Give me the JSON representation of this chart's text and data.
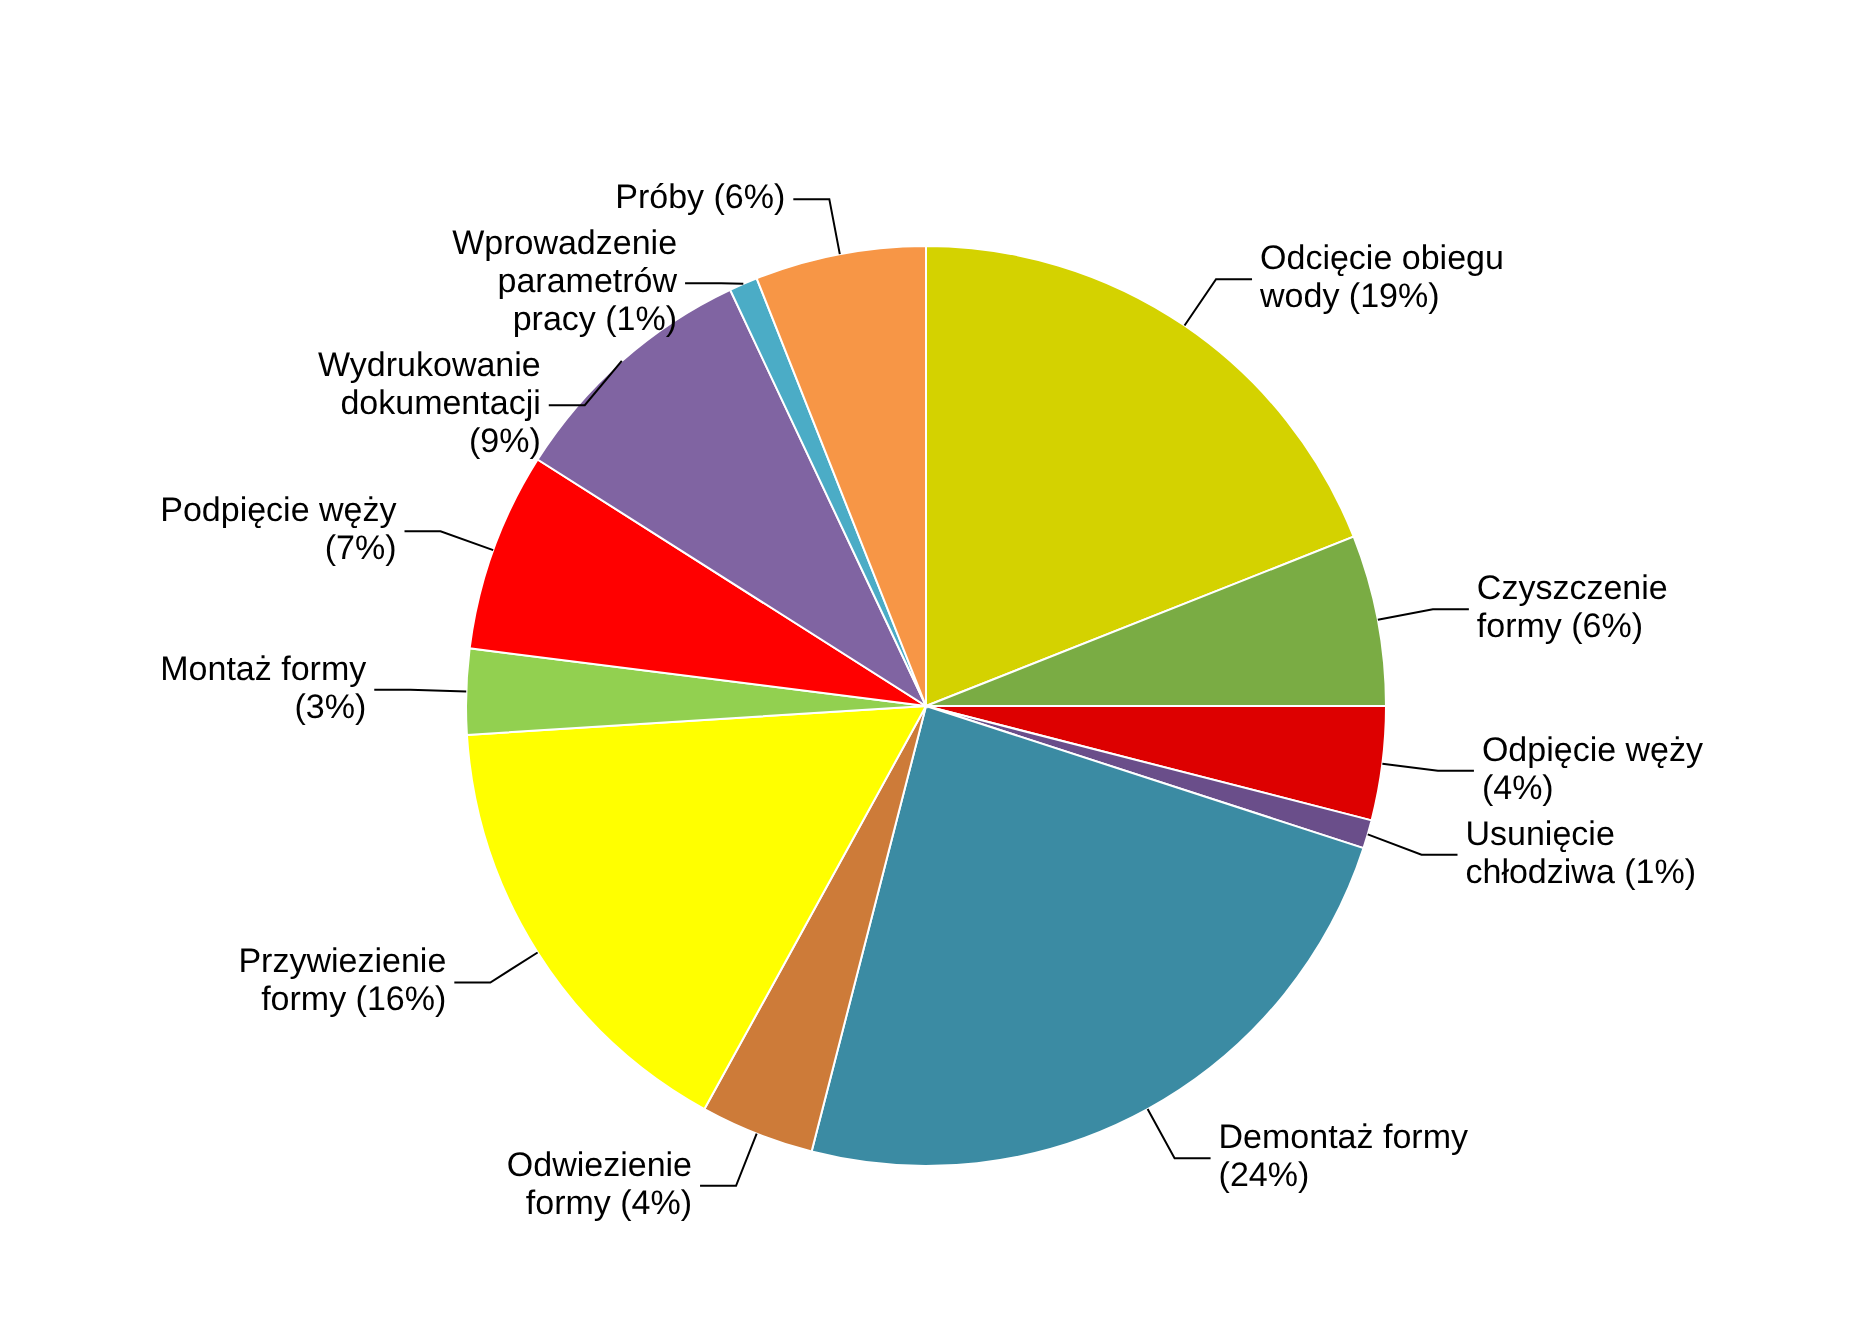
{
  "chart_data": {
    "type": "pie",
    "categories": [
      "Odcięcie obiegu wody",
      "Czyszczenie formy",
      "Odpięcie węży",
      "Usunięcie chłodziwa",
      "Demontaż formy",
      "Odwiezienie formy",
      "Przywiezienie formy",
      "Montaż formy",
      "Podpięcie węży",
      "Wydrukowanie dokumentacji",
      "Wprowadzenie parametrów pracy",
      "Próby"
    ],
    "values": [
      19,
      6,
      4,
      1,
      24,
      4,
      16,
      3,
      7,
      9,
      1,
      6
    ],
    "value_labels": [
      "(19%)",
      "(6%)",
      "(4%)",
      "(1%)",
      "(24%)",
      "(4%)",
      "(16%)",
      "(3%)",
      "(7%)",
      "(9%)",
      "(1%)",
      "(6%)"
    ],
    "colors": [
      "#d4d200",
      "#7aac44",
      "#dd0000",
      "#6a4e8a",
      "#3b8ba3",
      "#cd7b39",
      "#ffff00",
      "#92d050",
      "#ff0000",
      "#8064a2",
      "#4bacc6",
      "#f79646"
    ]
  }
}
